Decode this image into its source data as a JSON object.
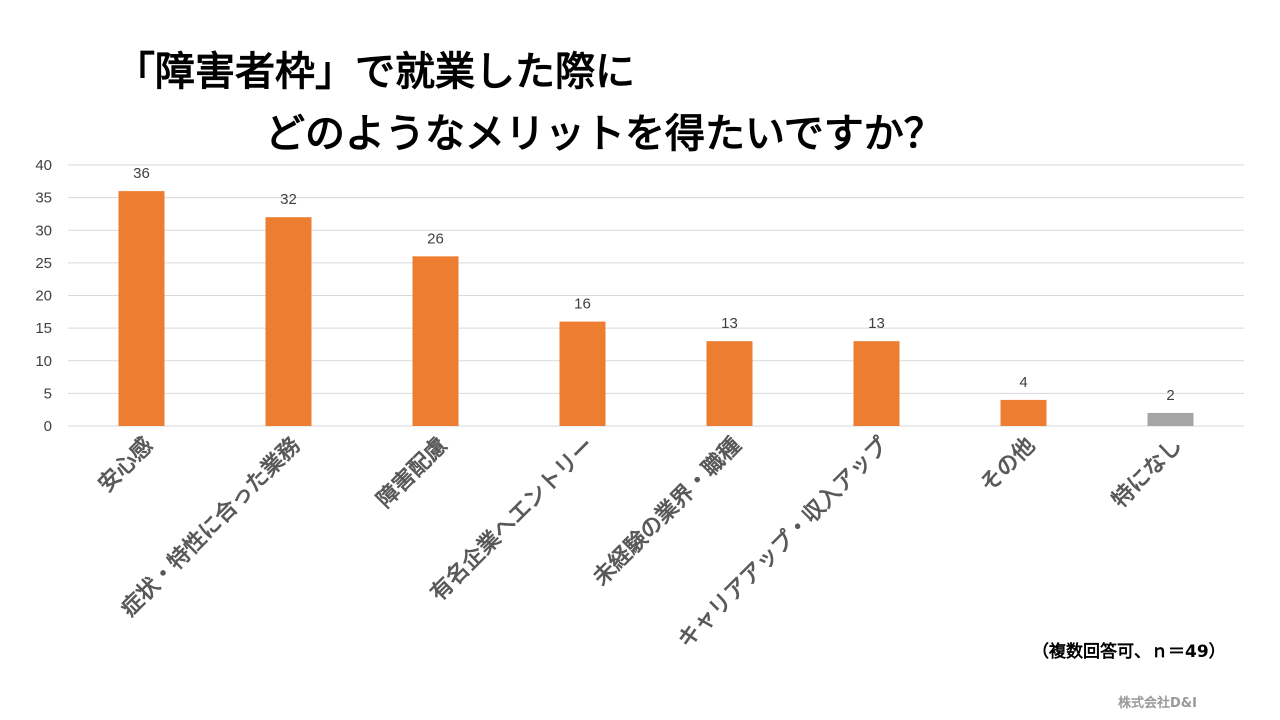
{
  "title": {
    "line1": "「障害者枠」で就業した際に",
    "line2": "どのようなメリットを得たいですか？"
  },
  "chart_data": {
    "type": "bar",
    "categories": [
      "安心感",
      "症状・特性に合った業務",
      "障害配慮",
      "有名企業へエントリー",
      "未経験の業界・職種",
      "キャリアアップ・収入アップ",
      "その他",
      "特になし"
    ],
    "values": [
      36,
      32,
      26,
      16,
      13,
      13,
      4,
      2
    ],
    "ylim": [
      0,
      40
    ],
    "yticks": [
      0,
      5,
      10,
      15,
      20,
      25,
      30,
      35,
      40
    ],
    "grid": true,
    "bar_colors": [
      "#ED7D31",
      "#ED7D31",
      "#ED7D31",
      "#ED7D31",
      "#ED7D31",
      "#ED7D31",
      "#ED7D31",
      "#A5A5A5"
    ]
  },
  "note": "（複数回答可、ｎ＝49）",
  "credit": "株式会社D&I"
}
